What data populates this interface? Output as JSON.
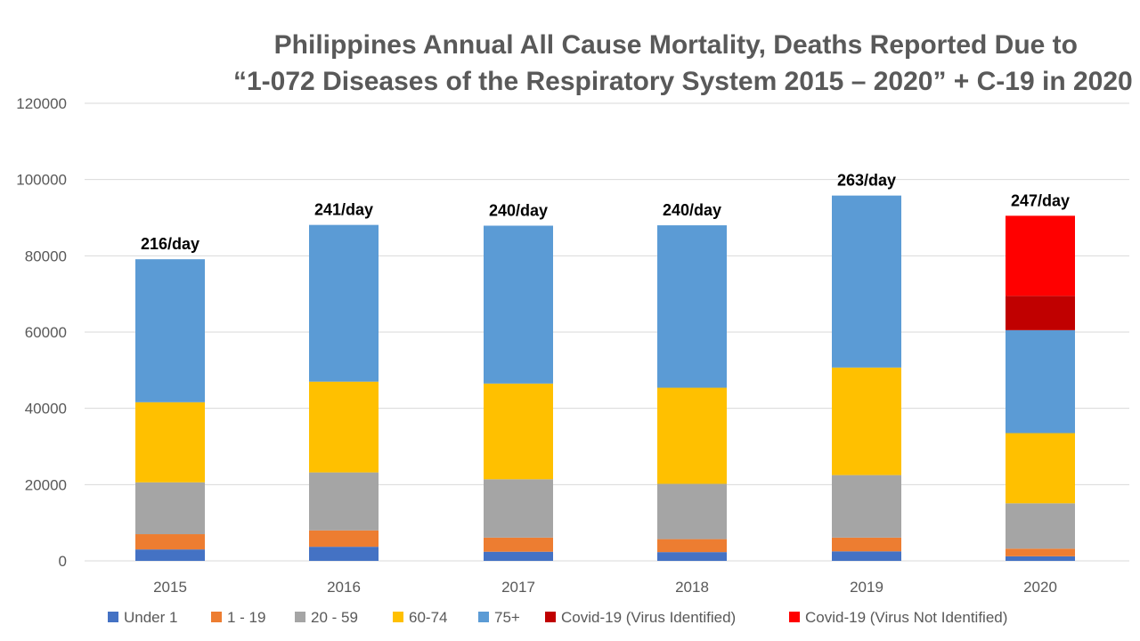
{
  "chart_data": {
    "type": "bar",
    "stacked": true,
    "title_line_1": "Philippines Annual All Cause Mortality, Deaths Reported Due to",
    "title_line_2": "“1-072 Diseases of the Respiratory System 2015 – 2020” + C-19 in 2020",
    "xlabel": "",
    "ylabel": "",
    "ylim": [
      0,
      120000
    ],
    "yticks": [
      0,
      20000,
      40000,
      60000,
      80000,
      100000,
      120000
    ],
    "grid": true,
    "legend_position": "bottom",
    "categories": [
      "2015",
      "2016",
      "2017",
      "2018",
      "2019",
      "2020"
    ],
    "totals_labels": [
      "216/day",
      "241/day",
      "240/day",
      "240/day",
      "263/day",
      "247/day"
    ],
    "series": [
      {
        "name": "Under 1",
        "color": "#4472C4",
        "values": [
          3000,
          3700,
          2400,
          2300,
          2500,
          1200
        ]
      },
      {
        "name": "1 - 19",
        "color": "#ED7D31",
        "values": [
          4000,
          4300,
          3700,
          3400,
          3600,
          2000
        ]
      },
      {
        "name": "20 - 59",
        "color": "#A5A5A5",
        "values": [
          13600,
          15200,
          15300,
          14500,
          16400,
          11900
        ]
      },
      {
        "name": "60-74",
        "color": "#FFC000",
        "values": [
          21000,
          23800,
          25100,
          25200,
          28200,
          18400
        ]
      },
      {
        "name": "75+",
        "color": "#5B9BD5",
        "values": [
          37500,
          41100,
          41400,
          42600,
          45100,
          27000
        ]
      },
      {
        "name": "Covid-19 (Virus Identified)",
        "color": "#C00000",
        "values": [
          0,
          0,
          0,
          0,
          0,
          9000
        ]
      },
      {
        "name": "Covid-19 (Virus Not Identified)",
        "color": "#FF0000",
        "values": [
          0,
          0,
          0,
          0,
          0,
          21000
        ]
      }
    ]
  }
}
